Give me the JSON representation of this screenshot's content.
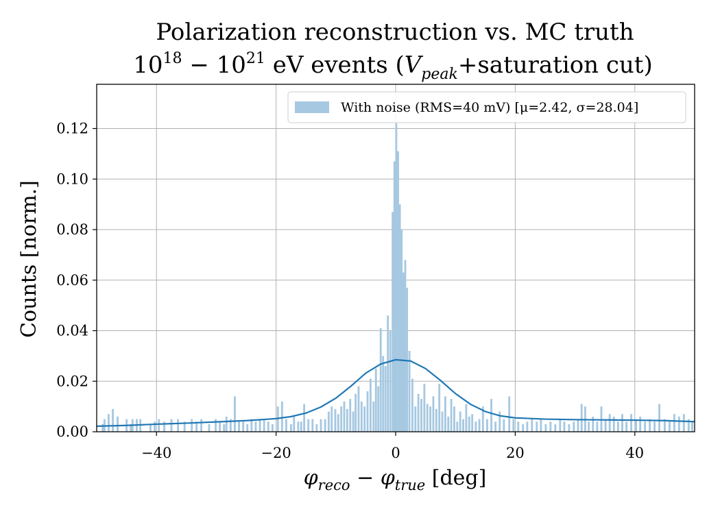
{
  "chart_data": {
    "type": "bar",
    "title_line1": "Polarization reconstruction vs. MC truth",
    "title_line2": {
      "base1": "10",
      "exp1": "18",
      "dash": " − ",
      "base2": "10",
      "exp2": "21",
      "rest": " eV events (",
      "v": "V",
      "v_sub": "peak",
      "tail": "+saturation cut)"
    },
    "xlabel": {
      "phi1": "φ",
      "sub1": "reco",
      "minus": " − ",
      "phi2": "φ",
      "sub2": "true",
      "unit": " [deg]"
    },
    "ylabel": "Counts [norm.]",
    "xlim": [
      -50,
      50
    ],
    "ylim": [
      0,
      0.1375
    ],
    "x_ticks": [
      -40,
      -20,
      0,
      20,
      40
    ],
    "x_tick_labels": [
      "−40",
      "−20",
      "0",
      "20",
      "40"
    ],
    "y_ticks": [
      0,
      0.02,
      0.04,
      0.06,
      0.08,
      0.1,
      0.12
    ],
    "y_tick_labels": [
      "0.00",
      "0.02",
      "0.04",
      "0.06",
      "0.08",
      "0.10",
      "0.12"
    ],
    "grid": true,
    "legend_position": "top-right",
    "legend_label": "With noise (RMS=40 mV) [μ=2.42, σ=28.04]",
    "histogram": {
      "name": "With noise (RMS=40 mV) [μ=2.42, σ=28.04]",
      "bin_width": 0.33,
      "bins": [
        {
          "x": -49.0,
          "y": 0.003
        },
        {
          "x": -48.7,
          "y": 0.005
        },
        {
          "x": -48.0,
          "y": 0.007
        },
        {
          "x": -47.3,
          "y": 0.009
        },
        {
          "x": -46.5,
          "y": 0.006
        },
        {
          "x": -45.0,
          "y": 0.005
        },
        {
          "x": -44.3,
          "y": 0.003
        },
        {
          "x": -44.0,
          "y": 0.005
        },
        {
          "x": -43.3,
          "y": 0.005
        },
        {
          "x": -42.7,
          "y": 0.005
        },
        {
          "x": -41.0,
          "y": 0.003
        },
        {
          "x": -40.3,
          "y": 0.004
        },
        {
          "x": -39.6,
          "y": 0.005
        },
        {
          "x": -38.7,
          "y": 0.004
        },
        {
          "x": -37.5,
          "y": 0.005
        },
        {
          "x": -36.4,
          "y": 0.005
        },
        {
          "x": -35.3,
          "y": 0.004
        },
        {
          "x": -34.1,
          "y": 0.005
        },
        {
          "x": -33.3,
          "y": 0.004
        },
        {
          "x": -32.5,
          "y": 0.005
        },
        {
          "x": -31.2,
          "y": 0.003
        },
        {
          "x": -30.1,
          "y": 0.005
        },
        {
          "x": -29.4,
          "y": 0.004
        },
        {
          "x": -28.7,
          "y": 0.003
        },
        {
          "x": -28.3,
          "y": 0.006
        },
        {
          "x": -27.6,
          "y": 0.005
        },
        {
          "x": -26.9,
          "y": 0.014
        },
        {
          "x": -26.2,
          "y": 0.004
        },
        {
          "x": -25.5,
          "y": 0.004
        },
        {
          "x": -24.8,
          "y": 0.003
        },
        {
          "x": -24.1,
          "y": 0.005
        },
        {
          "x": -23.4,
          "y": 0.004
        },
        {
          "x": -22.7,
          "y": 0.005
        },
        {
          "x": -22.0,
          "y": 0.005
        },
        {
          "x": -21.3,
          "y": 0.004
        },
        {
          "x": -20.6,
          "y": 0.003
        },
        {
          "x": -19.7,
          "y": 0.01
        },
        {
          "x": -19.0,
          "y": 0.012
        },
        {
          "x": -18.3,
          "y": 0.005
        },
        {
          "x": -17.5,
          "y": 0.003
        },
        {
          "x": -17.0,
          "y": 0.006
        },
        {
          "x": -16.3,
          "y": 0.004
        },
        {
          "x": -15.8,
          "y": 0.004
        },
        {
          "x": -15.3,
          "y": 0.011
        },
        {
          "x": -14.6,
          "y": 0.005
        },
        {
          "x": -13.9,
          "y": 0.005
        },
        {
          "x": -13.2,
          "y": 0.003
        },
        {
          "x": -12.5,
          "y": 0.005
        },
        {
          "x": -11.8,
          "y": 0.005
        },
        {
          "x": -11.2,
          "y": 0.008
        },
        {
          "x": -10.7,
          "y": 0.01
        },
        {
          "x": -10.1,
          "y": 0.009
        },
        {
          "x": -9.6,
          "y": 0.007
        },
        {
          "x": -9.1,
          "y": 0.01
        },
        {
          "x": -8.6,
          "y": 0.012
        },
        {
          "x": -8.1,
          "y": 0.009
        },
        {
          "x": -7.6,
          "y": 0.013
        },
        {
          "x": -7.1,
          "y": 0.008
        },
        {
          "x": -6.7,
          "y": 0.015
        },
        {
          "x": -6.2,
          "y": 0.018
        },
        {
          "x": -5.7,
          "y": 0.012
        },
        {
          "x": -5.2,
          "y": 0.01
        },
        {
          "x": -4.7,
          "y": 0.016
        },
        {
          "x": -4.2,
          "y": 0.021
        },
        {
          "x": -3.7,
          "y": 0.012
        },
        {
          "x": -3.3,
          "y": 0.025
        },
        {
          "x": -2.9,
          "y": 0.018
        },
        {
          "x": -2.5,
          "y": 0.041
        },
        {
          "x": -2.1,
          "y": 0.03
        },
        {
          "x": -1.7,
          "y": 0.026
        },
        {
          "x": -1.3,
          "y": 0.046
        },
        {
          "x": -0.9,
          "y": 0.04
        },
        {
          "x": -0.5,
          "y": 0.087
        },
        {
          "x": -0.2,
          "y": 0.107
        },
        {
          "x": 0.1,
          "y": 0.122
        },
        {
          "x": 0.4,
          "y": 0.111
        },
        {
          "x": 0.7,
          "y": 0.09
        },
        {
          "x": 1.0,
          "y": 0.08
        },
        {
          "x": 1.3,
          "y": 0.063
        },
        {
          "x": 1.6,
          "y": 0.068
        },
        {
          "x": 1.9,
          "y": 0.057
        },
        {
          "x": 2.3,
          "y": 0.032
        },
        {
          "x": 2.8,
          "y": 0.021
        },
        {
          "x": 3.3,
          "y": 0.01
        },
        {
          "x": 3.8,
          "y": 0.015
        },
        {
          "x": 4.3,
          "y": 0.013
        },
        {
          "x": 4.8,
          "y": 0.019
        },
        {
          "x": 5.3,
          "y": 0.011
        },
        {
          "x": 5.8,
          "y": 0.01
        },
        {
          "x": 6.3,
          "y": 0.014
        },
        {
          "x": 6.8,
          "y": 0.009
        },
        {
          "x": 7.3,
          "y": 0.019
        },
        {
          "x": 7.8,
          "y": 0.008
        },
        {
          "x": 8.3,
          "y": 0.014
        },
        {
          "x": 8.8,
          "y": 0.006
        },
        {
          "x": 9.3,
          "y": 0.013
        },
        {
          "x": 9.8,
          "y": 0.01
        },
        {
          "x": 10.3,
          "y": 0.004
        },
        {
          "x": 10.8,
          "y": 0.008
        },
        {
          "x": 11.3,
          "y": 0.005
        },
        {
          "x": 11.8,
          "y": 0.011
        },
        {
          "x": 12.3,
          "y": 0.006
        },
        {
          "x": 12.8,
          "y": 0.007
        },
        {
          "x": 13.4,
          "y": 0.004
        },
        {
          "x": 14.0,
          "y": 0.005
        },
        {
          "x": 14.6,
          "y": 0.01
        },
        {
          "x": 15.3,
          "y": 0.005
        },
        {
          "x": 16.0,
          "y": 0.013
        },
        {
          "x": 16.7,
          "y": 0.004
        },
        {
          "x": 17.4,
          "y": 0.008
        },
        {
          "x": 18.1,
          "y": 0.005
        },
        {
          "x": 19.0,
          "y": 0.014
        },
        {
          "x": 19.7,
          "y": 0.005
        },
        {
          "x": 20.5,
          "y": 0.004
        },
        {
          "x": 21.3,
          "y": 0.003
        },
        {
          "x": 22.0,
          "y": 0.004
        },
        {
          "x": 22.8,
          "y": 0.005
        },
        {
          "x": 23.6,
          "y": 0.004
        },
        {
          "x": 24.3,
          "y": 0.005
        },
        {
          "x": 25.1,
          "y": 0.003
        },
        {
          "x": 25.9,
          "y": 0.004
        },
        {
          "x": 26.7,
          "y": 0.003
        },
        {
          "x": 27.5,
          "y": 0.005
        },
        {
          "x": 28.2,
          "y": 0.004
        },
        {
          "x": 29.0,
          "y": 0.003
        },
        {
          "x": 29.8,
          "y": 0.004
        },
        {
          "x": 30.5,
          "y": 0.005
        },
        {
          "x": 31.1,
          "y": 0.011
        },
        {
          "x": 31.7,
          "y": 0.01
        },
        {
          "x": 32.3,
          "y": 0.004
        },
        {
          "x": 33.0,
          "y": 0.006
        },
        {
          "x": 33.7,
          "y": 0.004
        },
        {
          "x": 34.4,
          "y": 0.01
        },
        {
          "x": 35.1,
          "y": 0.005
        },
        {
          "x": 35.8,
          "y": 0.007
        },
        {
          "x": 36.5,
          "y": 0.006
        },
        {
          "x": 37.2,
          "y": 0.004
        },
        {
          "x": 37.9,
          "y": 0.007
        },
        {
          "x": 38.6,
          "y": 0.004
        },
        {
          "x": 39.4,
          "y": 0.007
        },
        {
          "x": 40.2,
          "y": 0.005
        },
        {
          "x": 40.9,
          "y": 0.006
        },
        {
          "x": 41.7,
          "y": 0.004
        },
        {
          "x": 42.5,
          "y": 0.005
        },
        {
          "x": 43.3,
          "y": 0.004
        },
        {
          "x": 44.1,
          "y": 0.011
        },
        {
          "x": 45.0,
          "y": 0.005
        },
        {
          "x": 45.8,
          "y": 0.004
        },
        {
          "x": 46.6,
          "y": 0.007
        },
        {
          "x": 47.4,
          "y": 0.006
        },
        {
          "x": 48.2,
          "y": 0.007
        },
        {
          "x": 49.0,
          "y": 0.005
        },
        {
          "x": 49.6,
          "y": 0.004
        }
      ]
    },
    "fit_curve": {
      "x": [
        -50,
        -45,
        -40,
        -35,
        -30,
        -25,
        -20,
        -17.5,
        -15,
        -12.5,
        -10,
        -7.5,
        -5,
        -2.5,
        0,
        2.5,
        5,
        7.5,
        10,
        12.5,
        15,
        17.5,
        20,
        25,
        30,
        35,
        40,
        45,
        50
      ],
      "y": [
        0.0022,
        0.0025,
        0.003,
        0.0034,
        0.0039,
        0.0044,
        0.0052,
        0.006,
        0.0074,
        0.0098,
        0.0133,
        0.018,
        0.0232,
        0.0268,
        0.0285,
        0.028,
        0.025,
        0.0203,
        0.0151,
        0.0109,
        0.008,
        0.0063,
        0.0055,
        0.005,
        0.0048,
        0.0047,
        0.0046,
        0.0044,
        0.004
      ]
    },
    "colors": {
      "bar": "#a6c8e1",
      "line": "#1f77b4",
      "grid": "#b0b0b0",
      "axis": "#000000"
    }
  }
}
